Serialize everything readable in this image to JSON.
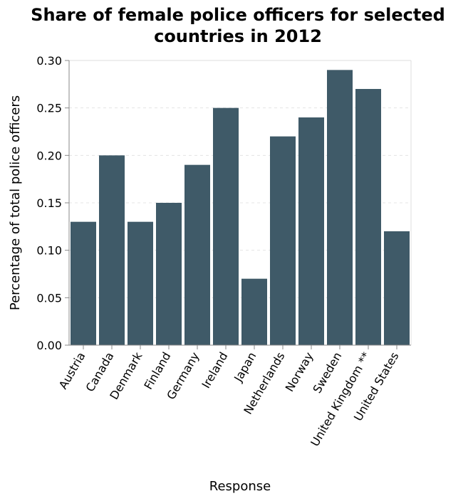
{
  "chart_data": {
    "type": "bar",
    "title": [
      "Share of female police officers for selected",
      "countries in 2012"
    ],
    "xlabel": "Response",
    "ylabel": "Percentage of total police officers",
    "categories": [
      "Austria",
      "Canada",
      "Denmark",
      "Finland",
      "Germany",
      "Ireland",
      "Japan",
      "Netherlands",
      "Norway",
      "Sweden",
      "United Kingdom **",
      "United States"
    ],
    "values": [
      0.13,
      0.2,
      0.13,
      0.15,
      0.19,
      0.25,
      0.07,
      0.22,
      0.24,
      0.29,
      0.27,
      0.12
    ],
    "ylim": [
      0,
      0.3
    ],
    "yticks": [
      "0.00",
      "0.05",
      "0.10",
      "0.15",
      "0.20",
      "0.25",
      "0.30"
    ],
    "grid": true,
    "bar_color": "#3f5a68"
  }
}
